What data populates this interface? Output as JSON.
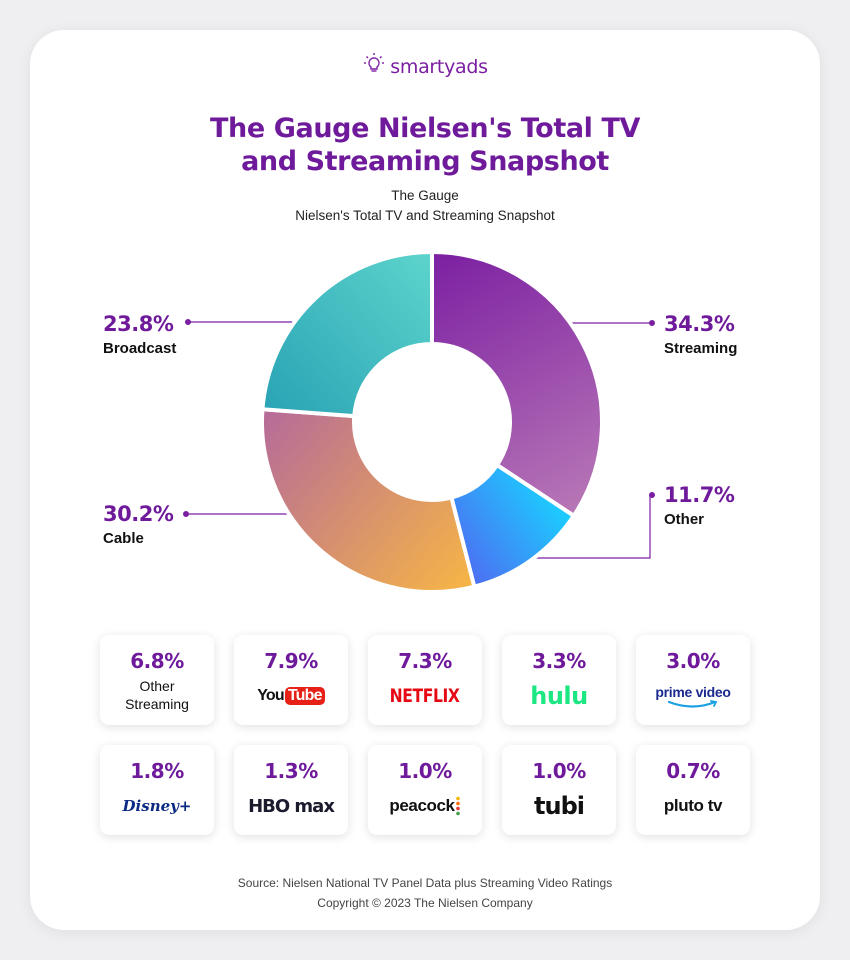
{
  "brand": {
    "name": "smartyads",
    "icon": "lightbulb-icon"
  },
  "title_line1": "The Gauge Nielsen's Total TV",
  "title_line2": "and Streaming Snapshot",
  "subtitle_line1": "The Gauge",
  "subtitle_line2": "Nielsen's Total TV and Streaming Snapshot",
  "chart_data": {
    "type": "pie",
    "variant": "donut",
    "slices": [
      {
        "label": "Streaming",
        "value": 34.3,
        "display": "34.3%",
        "color_start": "#7b1fa2",
        "color_end": "#b877b6"
      },
      {
        "label": "Other",
        "value": 11.7,
        "display": "11.7%",
        "color_start": "#1ad0ff",
        "color_end": "#4d6ef2"
      },
      {
        "label": "Cable",
        "value": 30.2,
        "display": "30.2%",
        "color_start": "#f7b645",
        "color_end": "#b56a9a"
      },
      {
        "label": "Broadcast",
        "value": 23.8,
        "display": "23.8%",
        "color_start": "#2aa3b5",
        "color_end": "#5dd4cc"
      }
    ]
  },
  "streaming_breakdown": [
    {
      "value": "6.8%",
      "name_line1": "Other",
      "name_line2": "Streaming",
      "logo": "text"
    },
    {
      "value": "7.9%",
      "name": "YouTube",
      "logo": "youtube-logo"
    },
    {
      "value": "7.3%",
      "name": "NETFLIX",
      "logo": "netflix-logo"
    },
    {
      "value": "3.3%",
      "name": "hulu",
      "logo": "hulu-logo"
    },
    {
      "value": "3.0%",
      "name": "prime video",
      "logo": "prime-video-logo"
    },
    {
      "value": "1.8%",
      "name": "Disney+",
      "logo": "disney-plus-logo"
    },
    {
      "value": "1.3%",
      "name": "HBO max",
      "logo": "hbo-max-logo"
    },
    {
      "value": "1.0%",
      "name": "peacock",
      "logo": "peacock-logo"
    },
    {
      "value": "1.0%",
      "name": "tubi",
      "logo": "tubi-logo"
    },
    {
      "value": "0.7%",
      "name": "pluto tv",
      "logo": "pluto-tv-logo"
    }
  ],
  "footer_line1": "Source: Nielsen National TV Panel Data plus Streaming Video Ratings",
  "footer_line2": "Copyright © 2023 The Nielsen Company"
}
